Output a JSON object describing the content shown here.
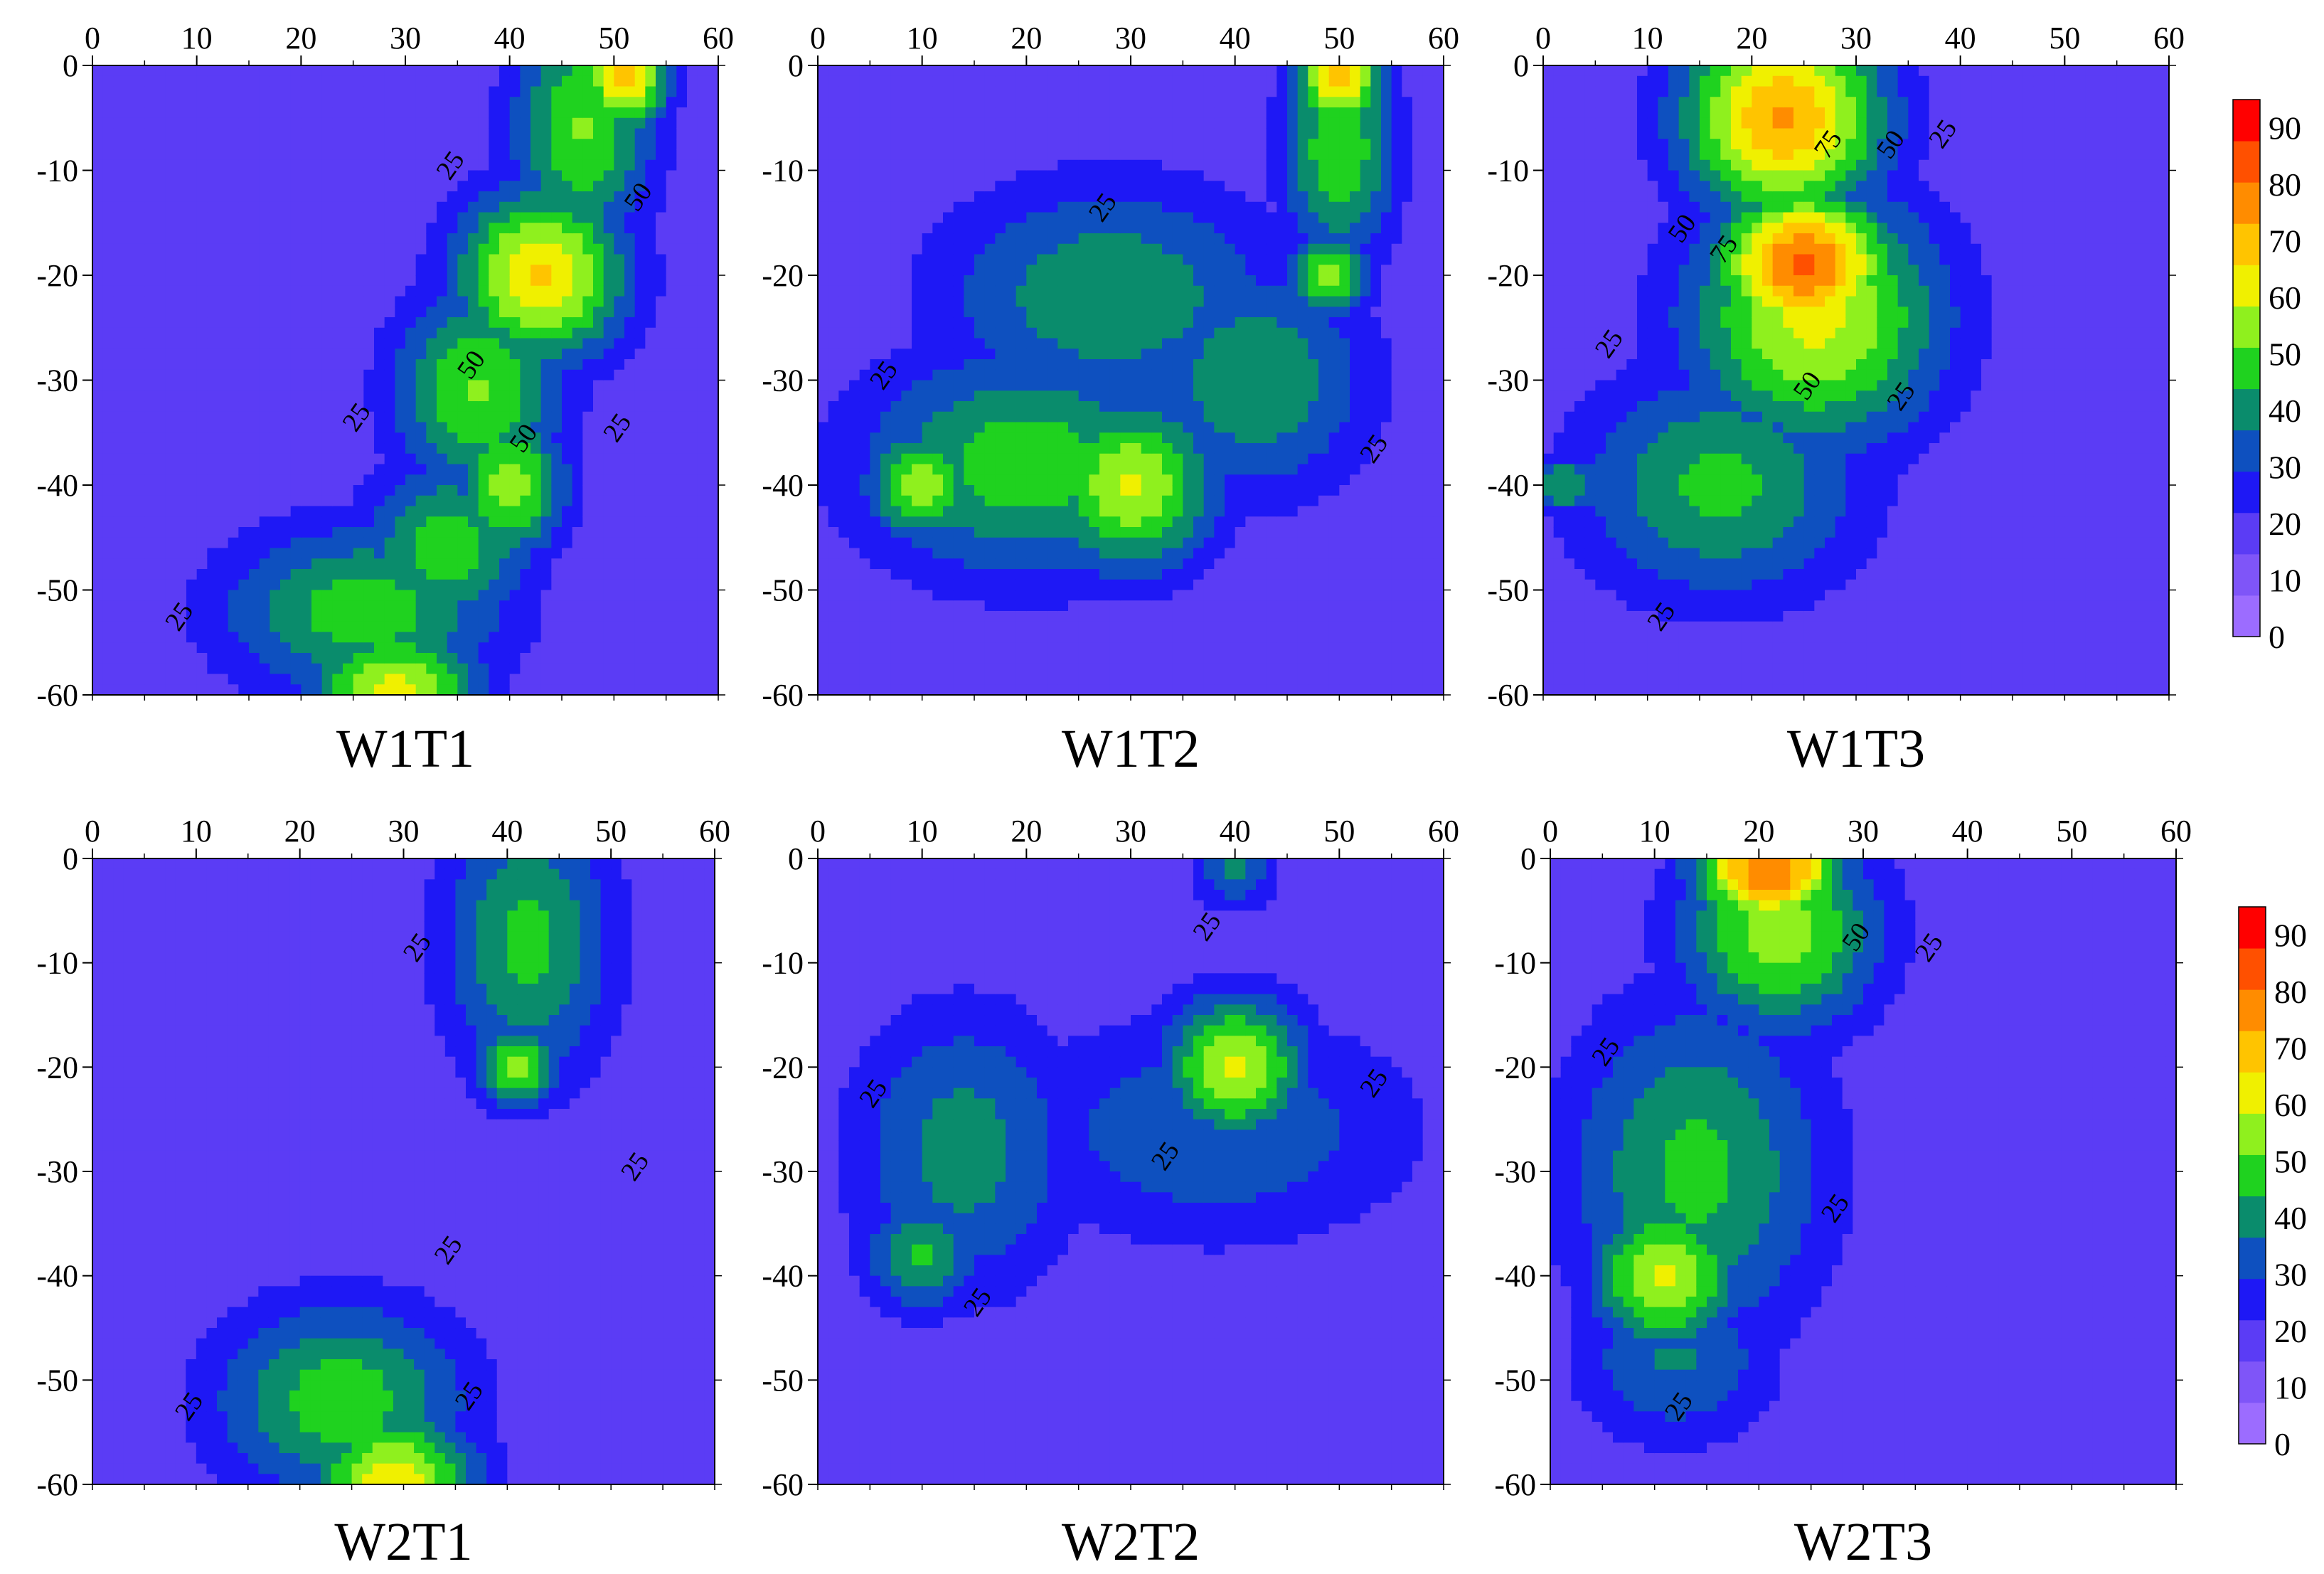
{
  "colors": {
    "levels": [
      "#9c6cff",
      "#7f55f8",
      "#5b3cf5",
      "#1e18f5",
      "#0e50bf",
      "#0a8c6c",
      "#1fd21f",
      "#8ff01e",
      "#f0f000",
      "#ffc400",
      "#ff8c00",
      "#ff5000",
      "#ff0000"
    ],
    "level_bounds": [
      0,
      10,
      20,
      30,
      40,
      50,
      60,
      70,
      80,
      90
    ]
  },
  "chart_data": [
    {
      "type": "heatmap",
      "title": "W1T1",
      "xlim": [
        0,
        60
      ],
      "ylim": [
        -60,
        0
      ],
      "xticks": [
        "0",
        "10",
        "20",
        "30",
        "40",
        "50",
        "60"
      ],
      "yticks": [
        "0",
        "-10",
        "-20",
        "-30",
        "-40",
        "-50",
        "-60"
      ],
      "hotspots": [
        {
          "x": 51,
          "y": -1,
          "value": 72,
          "sx": 3,
          "sy": 4
        },
        {
          "x": 43,
          "y": -20,
          "value": 70,
          "sx": 6,
          "sy": 6
        },
        {
          "x": 47,
          "y": -6,
          "value": 50,
          "sx": 5,
          "sy": 8
        },
        {
          "x": 40,
          "y": -40,
          "value": 55,
          "sx": 4,
          "sy": 5
        },
        {
          "x": 37,
          "y": -31,
          "value": 50,
          "sx": 6,
          "sy": 7
        },
        {
          "x": 29,
          "y": -60,
          "value": 63,
          "sx": 6,
          "sy": 5
        },
        {
          "x": 26,
          "y": -52,
          "value": 45,
          "sx": 10,
          "sy": 6
        },
        {
          "x": 34,
          "y": -46,
          "value": 45,
          "sx": 6,
          "sy": 6
        }
      ],
      "contour_labels": [
        {
          "x": 35,
          "y": -10,
          "text": "25"
        },
        {
          "x": 53,
          "y": -13,
          "text": "50"
        },
        {
          "x": 37,
          "y": -29,
          "text": "50"
        },
        {
          "x": 26,
          "y": -34,
          "text": "25"
        },
        {
          "x": 42,
          "y": -36,
          "text": "50"
        },
        {
          "x": 51,
          "y": -35,
          "text": "25"
        },
        {
          "x": 9,
          "y": -53,
          "text": "25"
        }
      ]
    },
    {
      "type": "heatmap",
      "title": "W1T2",
      "xlim": [
        0,
        60
      ],
      "ylim": [
        -60,
        0
      ],
      "xticks": [
        "0",
        "10",
        "20",
        "30",
        "40",
        "50",
        "60"
      ],
      "yticks": [
        "0",
        "-10",
        "-20",
        "-30",
        "-40",
        "-50",
        "-60"
      ],
      "hotspots": [
        {
          "x": 50,
          "y": -1,
          "value": 72,
          "sx": 3,
          "sy": 4
        },
        {
          "x": 50,
          "y": -8,
          "value": 48,
          "sx": 4,
          "sy": 8
        },
        {
          "x": 49,
          "y": -20,
          "value": 55,
          "sx": 3,
          "sy": 3
        },
        {
          "x": 30,
          "y": -40,
          "value": 60,
          "sx": 6,
          "sy": 6
        },
        {
          "x": 10,
          "y": -40,
          "value": 55,
          "sx": 4,
          "sy": 4
        },
        {
          "x": 20,
          "y": -38,
          "value": 45,
          "sx": 12,
          "sy": 8
        },
        {
          "x": 28,
          "y": -22,
          "value": 38,
          "sx": 12,
          "sy": 8
        },
        {
          "x": 42,
          "y": -30,
          "value": 38,
          "sx": 8,
          "sy": 8
        }
      ],
      "contour_labels": [
        {
          "x": 28,
          "y": -14,
          "text": "25"
        },
        {
          "x": 7,
          "y": -30,
          "text": "25"
        },
        {
          "x": 54,
          "y": -37,
          "text": "25"
        }
      ]
    },
    {
      "type": "heatmap",
      "title": "W1T3",
      "xlim": [
        0,
        60
      ],
      "ylim": [
        -60,
        0
      ],
      "xticks": [
        "0",
        "10",
        "20",
        "30",
        "40",
        "50",
        "60"
      ],
      "yticks": [
        "0",
        "-10",
        "-20",
        "-30",
        "-40",
        "-50",
        "-60"
      ],
      "hotspots": [
        {
          "x": 25,
          "y": -19,
          "value": 92,
          "sx": 6,
          "sy": 5
        },
        {
          "x": 23,
          "y": -5,
          "value": 80,
          "sx": 7,
          "sy": 7
        },
        {
          "x": 26,
          "y": -24,
          "value": 62,
          "sx": 9,
          "sy": 9
        },
        {
          "x": 17,
          "y": -40,
          "value": 42,
          "sx": 10,
          "sy": 8
        },
        {
          "x": 2,
          "y": -40,
          "value": 40,
          "sx": 3,
          "sy": 2
        }
      ],
      "contour_labels": [
        {
          "x": 28,
          "y": -8,
          "text": "75"
        },
        {
          "x": 34,
          "y": -8,
          "text": "50"
        },
        {
          "x": 39,
          "y": -7,
          "text": "25"
        },
        {
          "x": 14,
          "y": -16,
          "text": "50"
        },
        {
          "x": 18,
          "y": -18,
          "text": "75"
        },
        {
          "x": 26,
          "y": -31,
          "text": "50"
        },
        {
          "x": 35,
          "y": -32,
          "text": "25"
        },
        {
          "x": 7,
          "y": -27,
          "text": "25"
        },
        {
          "x": 12,
          "y": -53,
          "text": "25"
        }
      ]
    },
    {
      "type": "heatmap",
      "title": "W2T1",
      "xlim": [
        0,
        60
      ],
      "ylim": [
        -60,
        0
      ],
      "xticks": [
        "0",
        "10",
        "20",
        "30",
        "40",
        "50",
        "60"
      ],
      "yticks": [
        "0",
        "-10",
        "-20",
        "-30",
        "-40",
        "-50",
        "-60"
      ],
      "hotspots": [
        {
          "x": 41,
          "y": -20,
          "value": 52,
          "sx": 3,
          "sy": 3
        },
        {
          "x": 42,
          "y": -8,
          "value": 42,
          "sx": 6,
          "sy": 10
        },
        {
          "x": 29,
          "y": -60,
          "value": 65,
          "sx": 6,
          "sy": 5
        },
        {
          "x": 24,
          "y": -52,
          "value": 45,
          "sx": 9,
          "sy": 7
        }
      ],
      "contour_labels": [
        {
          "x": 32,
          "y": -9,
          "text": "25"
        },
        {
          "x": 53,
          "y": -30,
          "text": "25"
        },
        {
          "x": 35,
          "y": -38,
          "text": "25"
        },
        {
          "x": 10,
          "y": -53,
          "text": "25"
        },
        {
          "x": 37,
          "y": -52,
          "text": "25"
        }
      ]
    },
    {
      "type": "heatmap",
      "title": "W2T2",
      "xlim": [
        0,
        60
      ],
      "ylim": [
        -60,
        0
      ],
      "xticks": [
        "0",
        "10",
        "20",
        "30",
        "40",
        "50",
        "60"
      ],
      "yticks": [
        "0",
        "-10",
        "-20",
        "-30",
        "-40",
        "-50",
        "-60"
      ],
      "hotspots": [
        {
          "x": 40,
          "y": -20,
          "value": 60,
          "sx": 5,
          "sy": 5
        },
        {
          "x": 10,
          "y": -38,
          "value": 42,
          "sx": 4,
          "sy": 4
        },
        {
          "x": 14,
          "y": -28,
          "value": 34,
          "sx": 8,
          "sy": 10
        },
        {
          "x": 40,
          "y": -1,
          "value": 30,
          "sx": 3,
          "sy": 3
        },
        {
          "x": 38,
          "y": -26,
          "value": 28,
          "sx": 14,
          "sy": 8
        }
      ],
      "contour_labels": [
        {
          "x": 38,
          "y": -7,
          "text": "25"
        },
        {
          "x": 6,
          "y": -23,
          "text": "25"
        },
        {
          "x": 54,
          "y": -22,
          "text": "25"
        },
        {
          "x": 34,
          "y": -29,
          "text": "25"
        },
        {
          "x": 16,
          "y": -43,
          "text": "25"
        }
      ]
    },
    {
      "type": "heatmap",
      "title": "W2T3",
      "xlim": [
        0,
        60
      ],
      "ylim": [
        -60,
        0
      ],
      "xticks": [
        "0",
        "10",
        "20",
        "30",
        "40",
        "50",
        "60"
      ],
      "yticks": [
        "0",
        "-10",
        "-20",
        "-30",
        "-40",
        "-50",
        "-60"
      ],
      "hotspots": [
        {
          "x": 21,
          "y": -1,
          "value": 90,
          "sx": 5,
          "sy": 4
        },
        {
          "x": 22,
          "y": -7,
          "value": 55,
          "sx": 7,
          "sy": 7
        },
        {
          "x": 11,
          "y": -40,
          "value": 62,
          "sx": 5,
          "sy": 5
        },
        {
          "x": 14,
          "y": -30,
          "value": 42,
          "sx": 9,
          "sy": 12
        },
        {
          "x": 12,
          "y": -48,
          "value": 30,
          "sx": 7,
          "sy": 6
        }
      ],
      "contour_labels": [
        {
          "x": 30,
          "y": -8,
          "text": "50"
        },
        {
          "x": 37,
          "y": -9,
          "text": "25"
        },
        {
          "x": 6,
          "y": -19,
          "text": "25"
        },
        {
          "x": 28,
          "y": -34,
          "text": "25"
        },
        {
          "x": 13,
          "y": -53,
          "text": "25"
        }
      ]
    }
  ],
  "colorbars": [
    {
      "labels": [
        "0",
        "10",
        "20",
        "30",
        "40",
        "50",
        "60",
        "70",
        "80",
        "90"
      ]
    },
    {
      "labels": [
        "0",
        "10",
        "20",
        "30",
        "40",
        "50",
        "60",
        "70",
        "80",
        "90"
      ]
    }
  ]
}
